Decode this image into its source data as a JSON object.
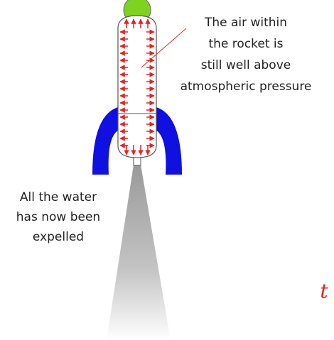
{
  "annotations": {
    "air": {
      "lines": [
        "The air within",
        "the rocket is",
        "still well above",
        "atmospheric pressure"
      ]
    },
    "water": {
      "lines": [
        "All the water",
        "has now been",
        "expelled"
      ]
    }
  },
  "symbol": "t"
}
